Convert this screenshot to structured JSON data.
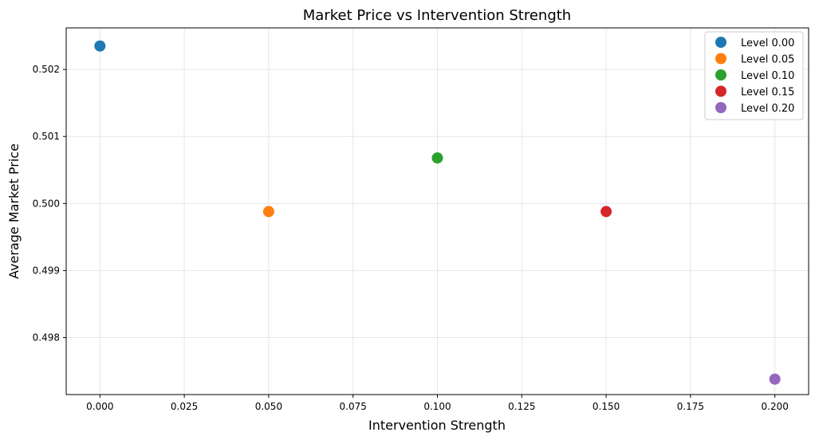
{
  "chart_data": {
    "type": "scatter",
    "title": "Market Price vs Intervention Strength",
    "xlabel": "Intervention Strength",
    "ylabel": "Average Market Price",
    "xlim": [
      -0.01,
      0.21
    ],
    "ylim": [
      0.49715,
      0.50262
    ],
    "x_ticks": [
      0.0,
      0.025,
      0.05,
      0.075,
      0.1,
      0.125,
      0.15,
      0.175,
      0.2
    ],
    "x_tick_labels": [
      "0.000",
      "0.025",
      "0.050",
      "0.075",
      "0.100",
      "0.125",
      "0.150",
      "0.175",
      "0.200"
    ],
    "y_ticks": [
      0.498,
      0.499,
      0.5,
      0.501,
      0.502
    ],
    "y_tick_labels": [
      "0.498",
      "0.499",
      "0.500",
      "0.501",
      "0.502"
    ],
    "grid": true,
    "legend_position": "top-right",
    "series": [
      {
        "name": "Level 0.00",
        "color": "#1f77b4",
        "x": 0.0,
        "y": 0.50235
      },
      {
        "name": "Level 0.05",
        "color": "#ff7f0e",
        "x": 0.05,
        "y": 0.49988
      },
      {
        "name": "Level 0.10",
        "color": "#2ca02c",
        "x": 0.1,
        "y": 0.50068
      },
      {
        "name": "Level 0.15",
        "color": "#d62728",
        "x": 0.15,
        "y": 0.49988
      },
      {
        "name": "Level 0.20",
        "color": "#9467bd",
        "x": 0.2,
        "y": 0.49738
      }
    ]
  }
}
